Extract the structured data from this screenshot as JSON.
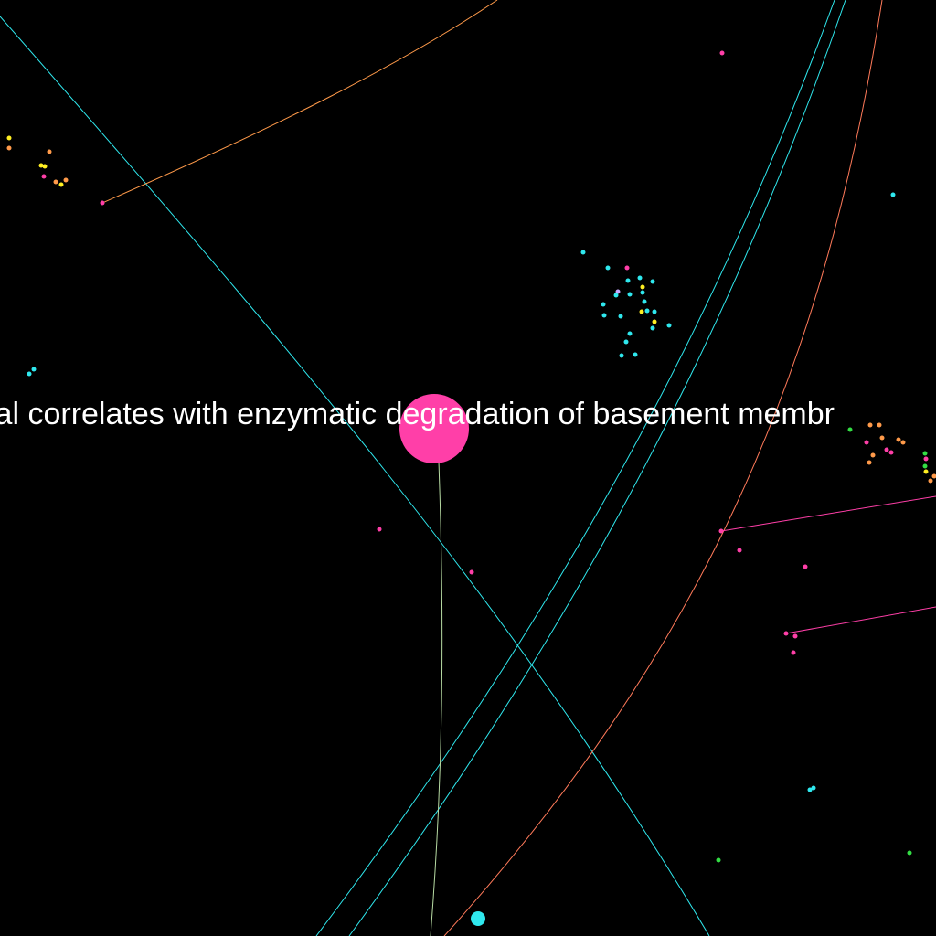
{
  "caption": "ial correlates with enzymatic degradation of basement membr",
  "colors": {
    "background": "#000000",
    "caption": "#ffffff",
    "hub": "#ff3fa8",
    "cyan": "#2fe8ee",
    "orange": "#ff9a4a",
    "magenta": "#ff3fa8",
    "yellow": "#ffee22",
    "green": "#33dd44",
    "lavender": "#c8a8ff",
    "pale_green": "#b8dca4"
  }
}
